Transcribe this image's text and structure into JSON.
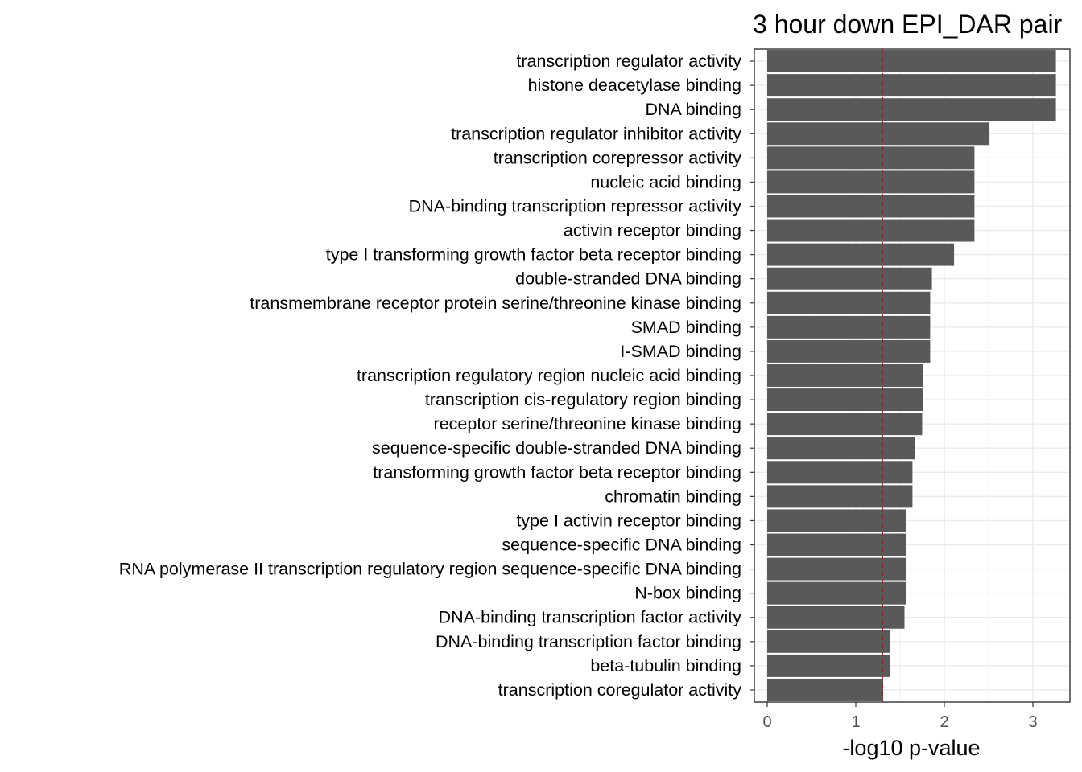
{
  "chart_data": {
    "type": "bar",
    "orientation": "horizontal",
    "title": "3 hour down EPI_DAR pair",
    "xlabel": "-log10 p-value",
    "ylabel": "",
    "xlim": [
      -0.1,
      3.42
    ],
    "x_ticks": [
      0,
      1,
      2,
      3
    ],
    "grid": true,
    "bar_color": "#595959",
    "reference_line": {
      "x": 1.301,
      "color": "#cc0000",
      "style": "dashed"
    },
    "categories": [
      "transcription regulator activity",
      "histone deacetylase binding",
      "DNA binding",
      "transcription regulator inhibitor activity",
      "transcription corepressor activity",
      "nucleic acid binding",
      "DNA-binding transcription repressor activity",
      "activin receptor binding",
      "type I transforming growth factor beta receptor binding",
      "double-stranded DNA binding",
      "transmembrane receptor protein serine/threonine kinase binding",
      "SMAD binding",
      "I-SMAD binding",
      "transcription regulatory region nucleic acid binding",
      "transcription cis-regulatory region binding",
      "receptor serine/threonine kinase binding",
      "sequence-specific double-stranded DNA binding",
      "transforming growth factor beta receptor binding",
      "chromatin binding",
      "type I activin receptor binding",
      "sequence-specific DNA binding",
      "RNA polymerase II transcription regulatory region sequence-specific DNA binding",
      "N-box binding",
      "DNA-binding transcription factor activity",
      "DNA-binding transcription factor binding",
      "beta-tubulin binding",
      "transcription coregulator activity"
    ],
    "values": [
      3.26,
      3.26,
      3.26,
      2.51,
      2.34,
      2.34,
      2.34,
      2.34,
      2.11,
      1.86,
      1.84,
      1.84,
      1.84,
      1.76,
      1.76,
      1.75,
      1.67,
      1.64,
      1.64,
      1.57,
      1.57,
      1.57,
      1.57,
      1.55,
      1.39,
      1.39,
      1.31
    ]
  }
}
